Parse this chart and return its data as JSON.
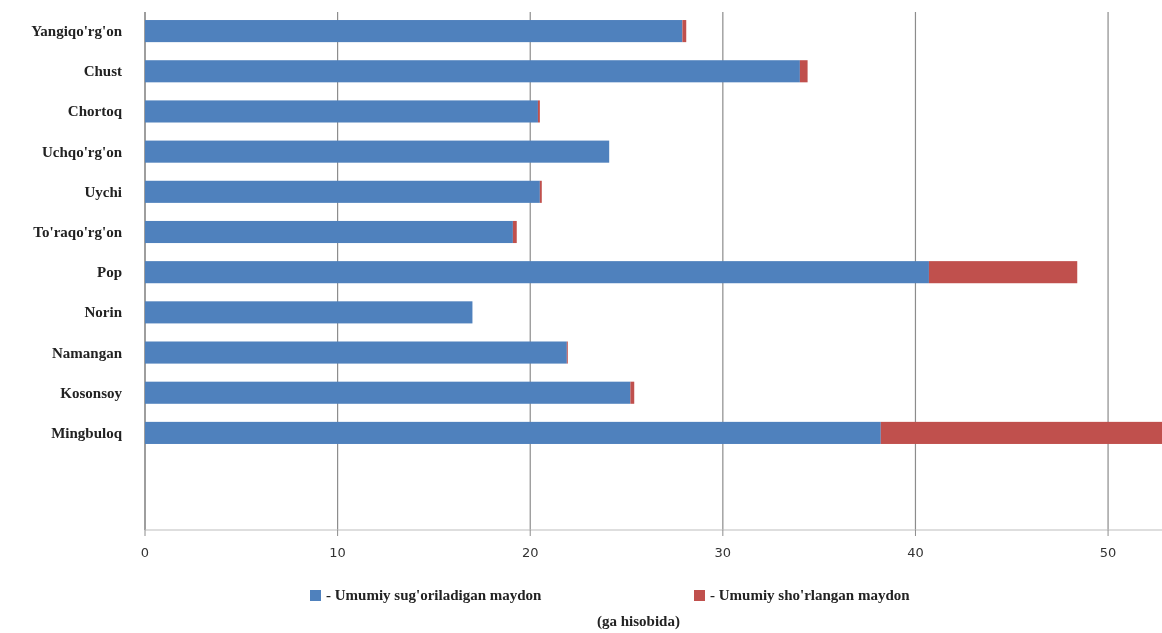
{
  "chart_data": {
    "type": "bar",
    "orientation": "horizontal",
    "stacked": true,
    "categories": [
      "Yangiqo'rg'on",
      "Chust",
      "Chortoq",
      "Uchqo'rg'on",
      "Uychi",
      "To'raqo'rg'on",
      "Pop",
      "Norin",
      "Namangan",
      "Kosonsoy",
      "Mingbuloq"
    ],
    "series": [
      {
        "name": "- Umumiy sug'oriladigan maydon",
        "color": "#4f81bd",
        "values": [
          27.9,
          34.0,
          20.4,
          24.1,
          20.5,
          19.1,
          40.7,
          17.0,
          21.9,
          25.2,
          38.2
        ]
      },
      {
        "name": "- Umumiy sho'rlangan maydon",
        "color": "#c0504d",
        "values": [
          0.2,
          0.4,
          0.1,
          0,
          0.1,
          0.2,
          7.7,
          0,
          0.05,
          0.2,
          14.6
        ]
      }
    ],
    "xlim": [
      0,
      52.8
    ],
    "xticks": [
      0,
      10,
      20,
      30,
      40,
      50
    ],
    "grid": "x",
    "legend": "bottom",
    "xlabel": "(ga hisobida)"
  }
}
